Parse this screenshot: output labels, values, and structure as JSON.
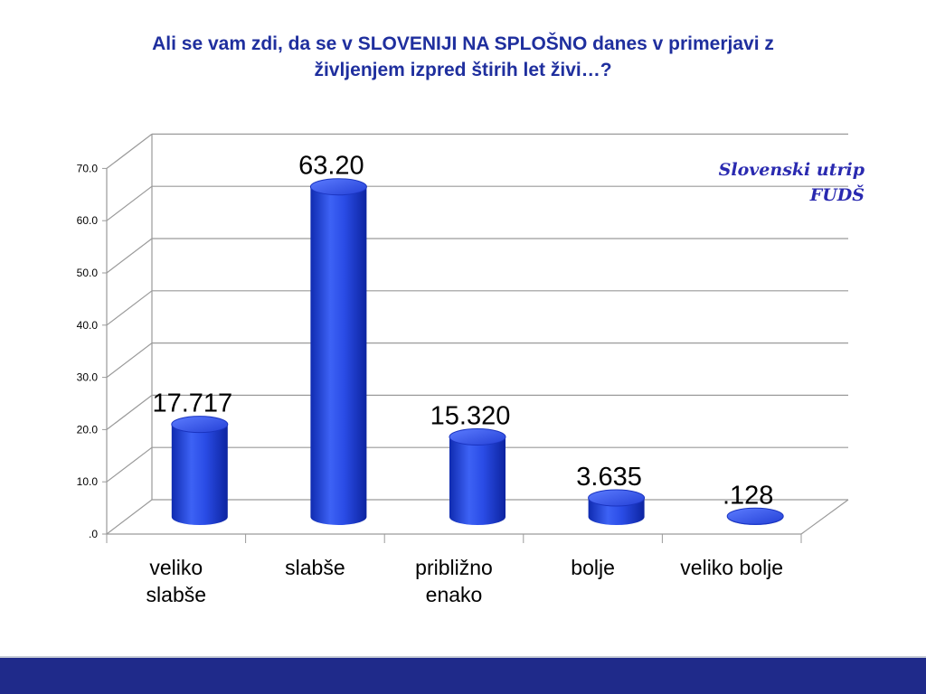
{
  "title_lines": [
    "Ali se vam zdi, da se v SLOVENIJI NA SPLOŠNO danes v primerjavi z",
    "življenjem izpred štirih let živi…?"
  ],
  "brand_lines": [
    "Slovenski utrip",
    "FUDŠ"
  ],
  "colors": {
    "bar": "#2244dd",
    "title": "#1f2f9e",
    "footer": "#1f2a8a"
  },
  "chart_data": {
    "type": "bar",
    "title": "Ali se vam zdi, da se v SLOVENIJI NA SPLOŠNO danes v primerjavi z življenjem izpred štirih let živi…?",
    "categories": [
      [
        "veliko",
        "slabše"
      ],
      [
        "slabše"
      ],
      [
        "približno",
        "enako"
      ],
      [
        "bolje"
      ],
      [
        "veliko bolje"
      ]
    ],
    "values": [
      17.717,
      63.2,
      15.32,
      3.635,
      0.128
    ],
    "value_labels": [
      "17.717",
      "63.20",
      "15.320",
      "3.635",
      ".128"
    ],
    "y_ticks": [
      ".0",
      "10.0",
      "20.0",
      "30.0",
      "40.0",
      "50.0",
      "60.0",
      "70.0"
    ],
    "ylim": [
      0,
      70
    ],
    "grid": true
  }
}
